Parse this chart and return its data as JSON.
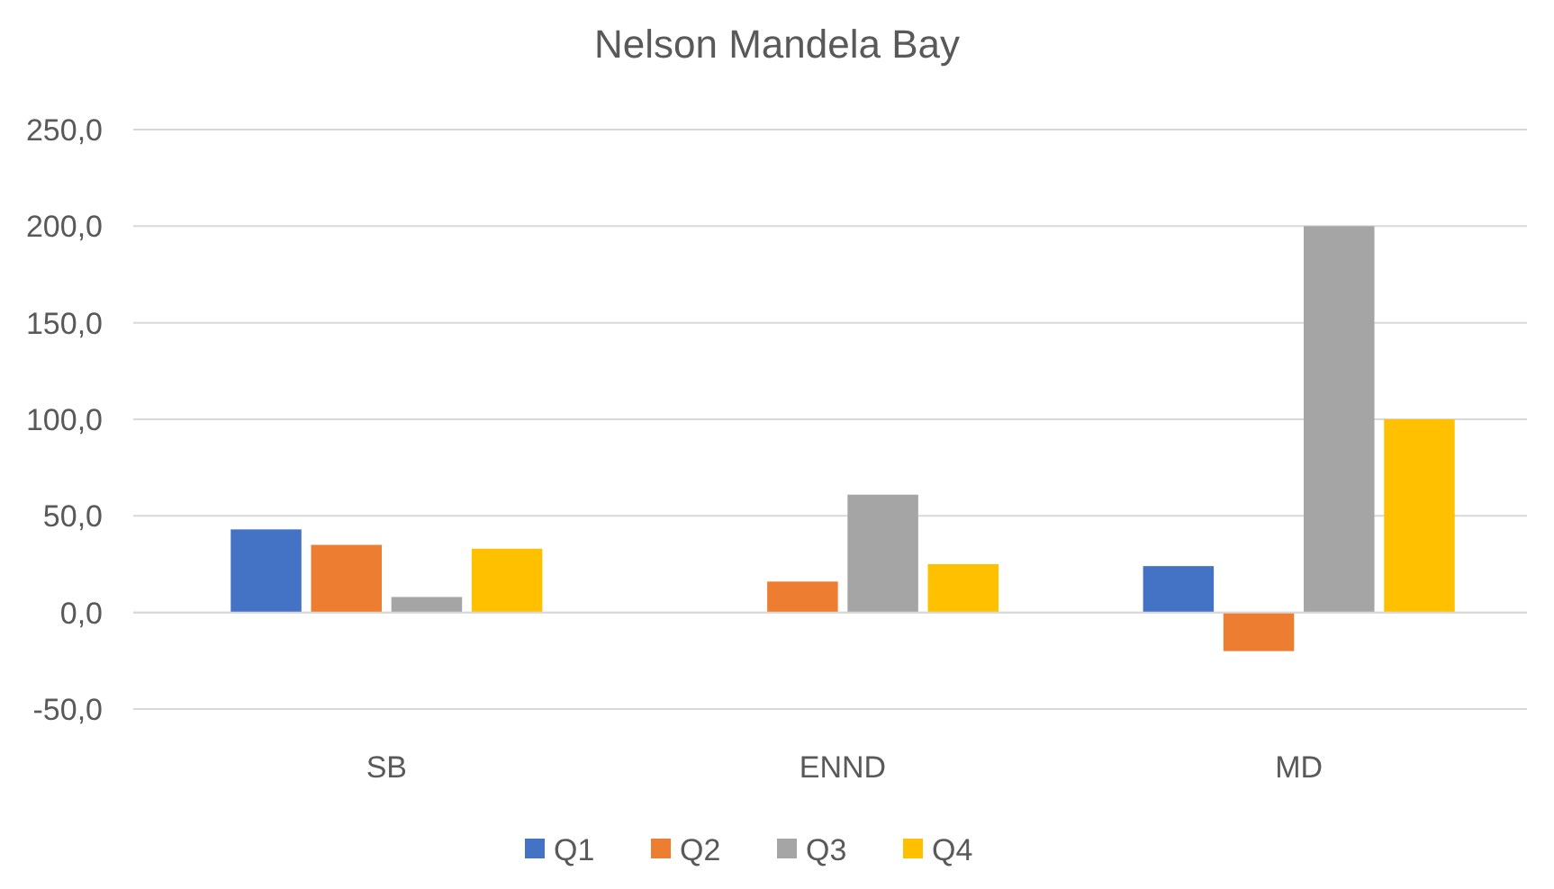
{
  "chart_data": {
    "type": "bar",
    "title": "Nelson Mandela Bay",
    "categories": [
      "SB",
      "ENND",
      "MD"
    ],
    "series": [
      {
        "name": "Q1",
        "color": "#4472c4",
        "values": [
          43,
          null,
          24
        ]
      },
      {
        "name": "Q2",
        "color": "#ed7d31",
        "values": [
          35,
          16,
          -20
        ]
      },
      {
        "name": "Q3",
        "color": "#a5a5a5",
        "values": [
          8,
          61,
          200
        ]
      },
      {
        "name": "Q4",
        "color": "#ffc000",
        "values": [
          33,
          25,
          100
        ]
      }
    ],
    "ylim": [
      -50,
      250
    ],
    "yticks": [
      {
        "value": -50,
        "label": "-50,0"
      },
      {
        "value": 0,
        "label": "0,0"
      },
      {
        "value": 50,
        "label": "50,0"
      },
      {
        "value": 100,
        "label": "100,0"
      },
      {
        "value": 150,
        "label": "150,0"
      },
      {
        "value": 200,
        "label": "200,0"
      },
      {
        "value": 250,
        "label": "250,0"
      }
    ],
    "grid": "y",
    "legend": "bottom"
  }
}
